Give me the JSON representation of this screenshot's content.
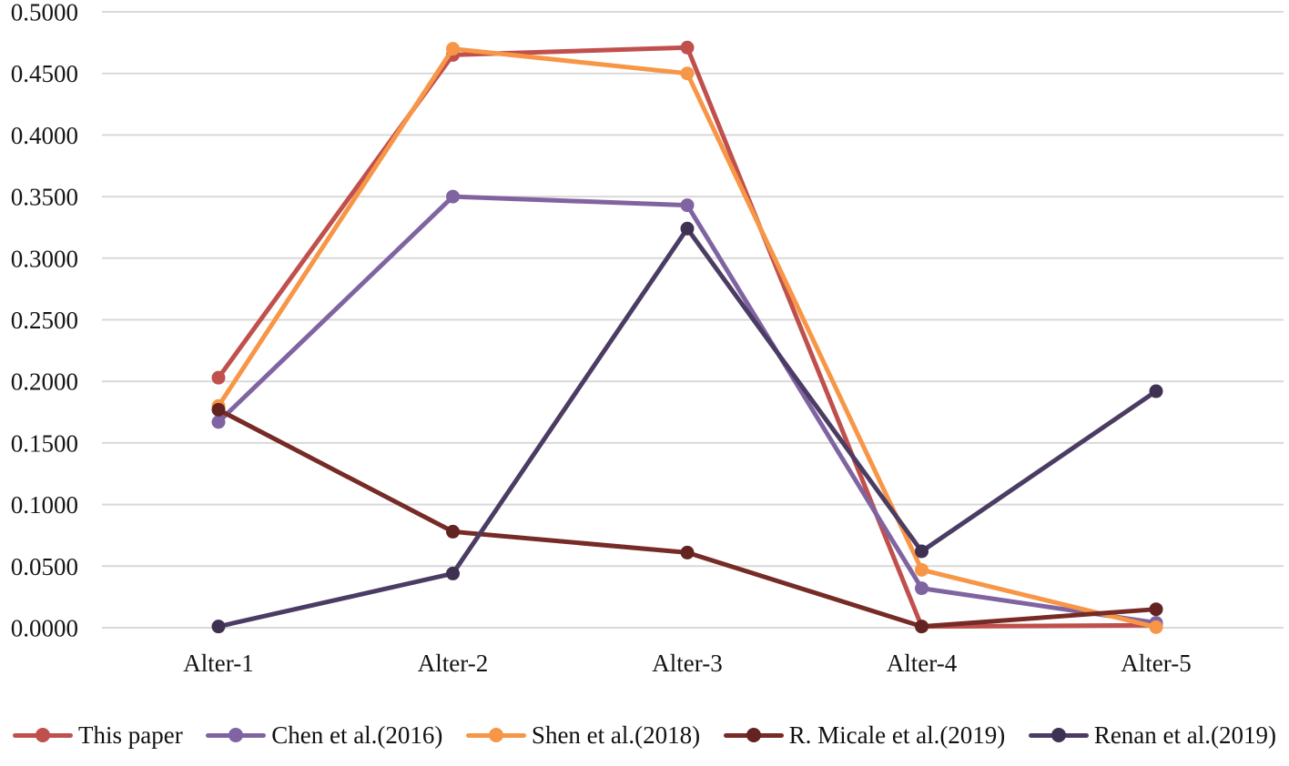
{
  "chart_data": {
    "type": "line",
    "title": "",
    "xlabel": "",
    "ylabel": "",
    "categories": [
      "Alter-1",
      "Alter-2",
      "Alter-3",
      "Alter-4",
      "Alter-5"
    ],
    "y_ticks": [
      "0.0000",
      "0.0500",
      "0.1000",
      "0.1500",
      "0.2000",
      "0.2500",
      "0.3000",
      "0.3500",
      "0.4000",
      "0.4500",
      "0.5000"
    ],
    "ylim": [
      0.0,
      0.5
    ],
    "grid": "horizontal",
    "gridline_color": "#d9d9d9",
    "legend_position": "bottom",
    "marker_style": "circle",
    "series": [
      {
        "name": "This paper",
        "color": "#c0504d",
        "marker_color": "#c0504d",
        "values": [
          0.203,
          0.465,
          0.471,
          0.001,
          0.002
        ]
      },
      {
        "name": "Chen et al.(2016)",
        "color": "#8064a2",
        "marker_color": "#8064a2",
        "values": [
          0.167,
          0.35,
          0.343,
          0.032,
          0.004
        ]
      },
      {
        "name": "Shen et al.(2018)",
        "color": "#f79646",
        "marker_color": "#f79646",
        "values": [
          0.18,
          0.47,
          0.45,
          0.047,
          0.0005
        ]
      },
      {
        "name": "R. Micale et al.(2019)",
        "color": "#772b26",
        "marker_color": "#632421",
        "values": [
          0.177,
          0.078,
          0.061,
          0.001,
          0.015
        ]
      },
      {
        "name": "Renan et al.(2019)",
        "color": "#4b3c64",
        "marker_color": "#3e3152",
        "values": [
          0.001,
          0.044,
          0.324,
          0.062,
          0.192
        ]
      }
    ]
  }
}
